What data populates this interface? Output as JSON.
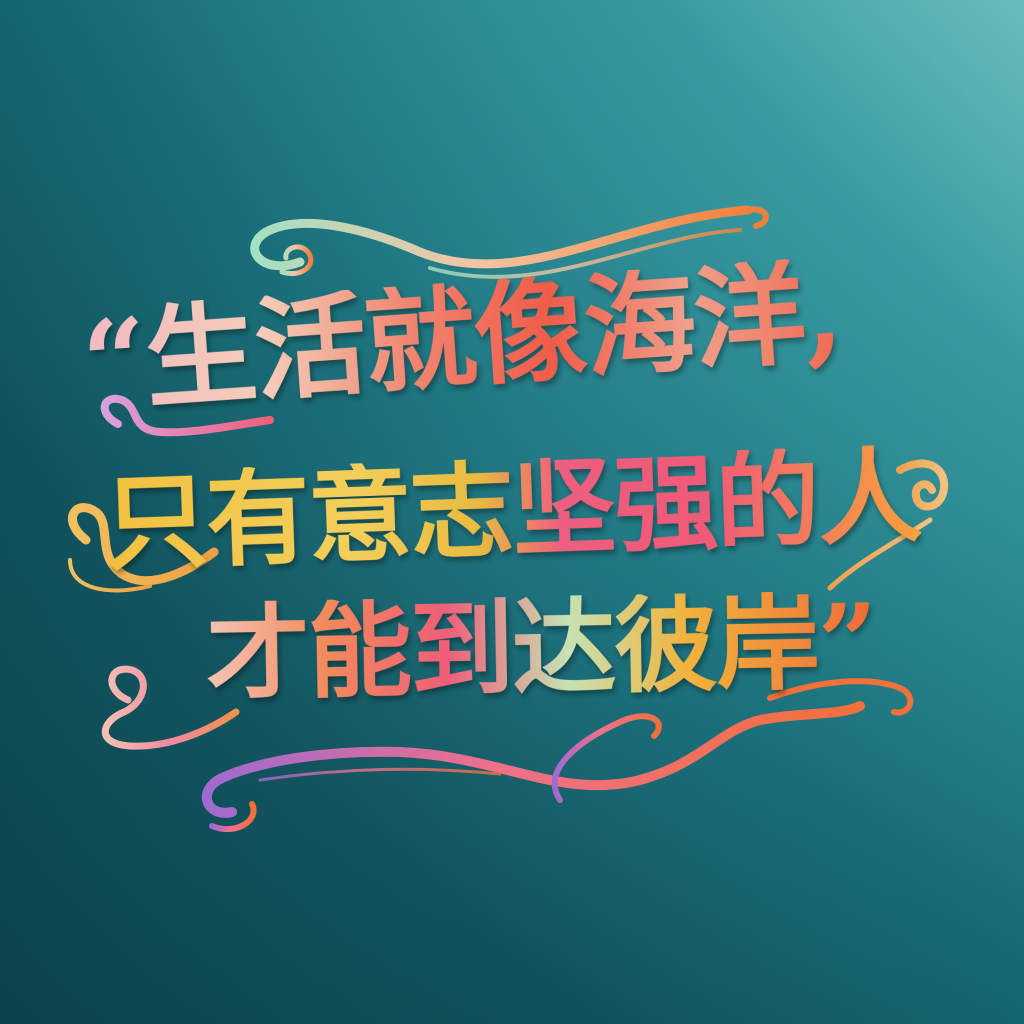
{
  "quote": {
    "line1": "“生活就像海洋,",
    "line2": "只有意志坚强的人",
    "line3": "才能到达彼岸”"
  },
  "colors": {
    "background_light": "#74d1d0",
    "background_dark": "#0c4954",
    "accent_pink": "#ef5a78",
    "accent_orange": "#f28a3c",
    "accent_yellow": "#f2c040",
    "accent_mint": "#c7e2b4",
    "accent_purple": "#9a62c4"
  },
  "decorations": [
    "top-flourish",
    "left-flourish",
    "right-flourish",
    "bottom-flourish"
  ]
}
